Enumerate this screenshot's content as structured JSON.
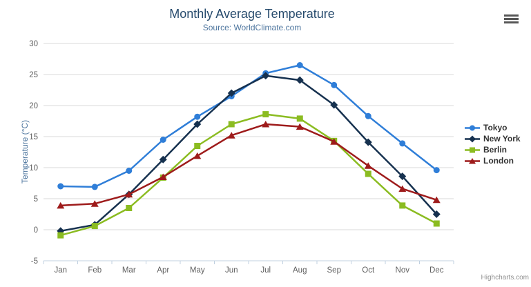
{
  "credits": "Highcharts.com",
  "chart_data": {
    "type": "line",
    "title": "Monthly Average Temperature",
    "subtitle": "Source: WorldClimate.com",
    "categories": [
      "Jan",
      "Feb",
      "Mar",
      "Apr",
      "May",
      "Jun",
      "Jul",
      "Aug",
      "Sep",
      "Oct",
      "Nov",
      "Dec"
    ],
    "xlabel": "",
    "ylabel": "Temperature (°C)",
    "ylim": [
      -5,
      30
    ],
    "ytick_step": 5,
    "grid": true,
    "legend_position": "right",
    "axis_colors": {
      "grid": "#d8d8d8",
      "axis_line": "#c0d0e0",
      "labels": "#606060"
    },
    "series": [
      {
        "name": "Tokyo",
        "color": "#2f7ed8",
        "marker": "circle",
        "values": [
          7.0,
          6.9,
          9.5,
          14.5,
          18.2,
          21.5,
          25.2,
          26.5,
          23.3,
          18.3,
          13.9,
          9.6
        ]
      },
      {
        "name": "New York",
        "color": "#16314f",
        "marker": "diamond",
        "values": [
          -0.2,
          0.8,
          5.7,
          11.3,
          17.0,
          22.0,
          24.8,
          24.1,
          20.1,
          14.1,
          8.6,
          2.5
        ]
      },
      {
        "name": "Berlin",
        "color": "#8bbc21",
        "marker": "square",
        "values": [
          -0.9,
          0.6,
          3.5,
          8.4,
          13.5,
          17.0,
          18.6,
          17.9,
          14.3,
          9.0,
          3.9,
          1.0
        ]
      },
      {
        "name": "London",
        "color": "#9e1b1b",
        "marker": "triangle",
        "values": [
          3.9,
          4.2,
          5.7,
          8.5,
          11.9,
          15.2,
          17.0,
          16.6,
          14.2,
          10.3,
          6.6,
          4.8
        ]
      }
    ]
  }
}
